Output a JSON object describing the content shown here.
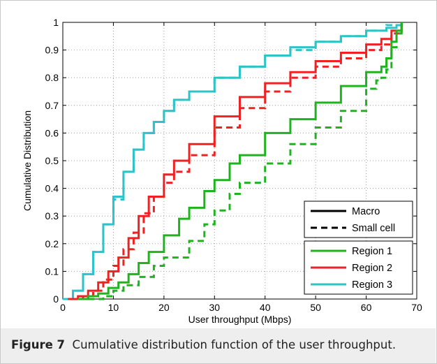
{
  "caption": {
    "label": "Figure 7",
    "text": "Cumulative distribution function of the user throughput."
  },
  "chart_data": {
    "type": "line",
    "title": "",
    "xlabel": "User throughput (Mbps)",
    "ylabel": "Cumulative Distribution",
    "xlim": [
      0,
      70
    ],
    "ylim": [
      0,
      1
    ],
    "xticks": [
      0,
      10,
      20,
      30,
      40,
      50,
      60,
      70
    ],
    "yticks": [
      0,
      0.1,
      0.2,
      0.3,
      0.4,
      0.5,
      0.6,
      0.7,
      0.8,
      0.9,
      1
    ],
    "ytick_labels": [
      "0",
      "0.1",
      "0.2",
      "0.3",
      "0.4",
      "0.5",
      "0.6",
      "0.7",
      "0.8",
      "0.9",
      "1"
    ],
    "grid": true,
    "legend_style": {
      "placement": "bottom-right",
      "entries": [
        {
          "label": "Macro",
          "dash": "solid"
        },
        {
          "label": "Small cell",
          "dash": "dashed"
        }
      ]
    },
    "legend_region": {
      "placement": "bottom-right",
      "entries": [
        {
          "label": "Region 1",
          "color": "#1fb31f"
        },
        {
          "label": "Region 2",
          "color": "#ee2222"
        },
        {
          "label": "Region 3",
          "color": "#2ec3c8"
        }
      ]
    },
    "series": [
      {
        "name": "Region 3",
        "cell": "Macro",
        "dash": "solid",
        "color": "#2ec3c8",
        "x": [
          0,
          2,
          4,
          6,
          8,
          10,
          12,
          14,
          16,
          18,
          20,
          22,
          25,
          30,
          35,
          40,
          45,
          50,
          55,
          60,
          64,
          66,
          67
        ],
        "y": [
          0,
          0.03,
          0.09,
          0.17,
          0.27,
          0.37,
          0.46,
          0.54,
          0.6,
          0.64,
          0.68,
          0.72,
          0.75,
          0.8,
          0.84,
          0.88,
          0.91,
          0.93,
          0.95,
          0.97,
          0.98,
          0.99,
          1
        ]
      },
      {
        "name": "Region 3",
        "cell": "Small cell",
        "dash": "dashed",
        "color": "#2ec3c8",
        "x": [
          0,
          2,
          4,
          6,
          8,
          10,
          12,
          14,
          16,
          18,
          20,
          22,
          25,
          30,
          35,
          40,
          45,
          50,
          55,
          60,
          64,
          66,
          67
        ],
        "y": [
          0,
          0.03,
          0.09,
          0.17,
          0.27,
          0.36,
          0.46,
          0.54,
          0.6,
          0.64,
          0.68,
          0.72,
          0.75,
          0.8,
          0.84,
          0.88,
          0.9,
          0.93,
          0.95,
          0.97,
          0.99,
          0.99,
          1
        ]
      },
      {
        "name": "Region 2",
        "cell": "Macro",
        "dash": "solid",
        "color": "#ee2222",
        "x": [
          1,
          3,
          5,
          7,
          9,
          11,
          13,
          15,
          17,
          20,
          22,
          25,
          30,
          35,
          40,
          45,
          50,
          55,
          60,
          63,
          65,
          67
        ],
        "y": [
          0,
          0.01,
          0.03,
          0.06,
          0.1,
          0.15,
          0.22,
          0.3,
          0.37,
          0.45,
          0.5,
          0.56,
          0.66,
          0.73,
          0.78,
          0.82,
          0.86,
          0.89,
          0.92,
          0.94,
          0.97,
          1
        ]
      },
      {
        "name": "Region 2",
        "cell": "Small cell",
        "dash": "dashed",
        "color": "#ee2222",
        "x": [
          2,
          4,
          6,
          8,
          10,
          12,
          14,
          16,
          18,
          20,
          22,
          25,
          30,
          35,
          40,
          45,
          50,
          55,
          60,
          63,
          65,
          67
        ],
        "y": [
          0,
          0.01,
          0.03,
          0.07,
          0.12,
          0.18,
          0.24,
          0.31,
          0.37,
          0.42,
          0.46,
          0.52,
          0.62,
          0.69,
          0.75,
          0.8,
          0.84,
          0.87,
          0.9,
          0.92,
          0.96,
          1
        ]
      },
      {
        "name": "Region 1",
        "cell": "Macro",
        "dash": "solid",
        "color": "#1fb31f",
        "x": [
          3,
          5,
          7,
          9,
          11,
          13,
          15,
          17,
          20,
          23,
          25,
          28,
          30,
          33,
          35,
          40,
          45,
          50,
          55,
          60,
          63,
          64,
          65,
          66,
          67
        ],
        "y": [
          0,
          0.01,
          0.02,
          0.04,
          0.06,
          0.09,
          0.13,
          0.17,
          0.23,
          0.29,
          0.33,
          0.39,
          0.43,
          0.49,
          0.52,
          0.6,
          0.65,
          0.71,
          0.77,
          0.82,
          0.84,
          0.87,
          0.93,
          0.97,
          1
        ]
      },
      {
        "name": "Region 1",
        "cell": "Small cell",
        "dash": "dashed",
        "color": "#1fb31f",
        "x": [
          5,
          8,
          10,
          12,
          15,
          18,
          20,
          25,
          28,
          30,
          33,
          35,
          40,
          45,
          50,
          55,
          60,
          62,
          63,
          64,
          65,
          66,
          67
        ],
        "y": [
          0,
          0.01,
          0.03,
          0.05,
          0.08,
          0.12,
          0.15,
          0.21,
          0.27,
          0.32,
          0.38,
          0.42,
          0.49,
          0.56,
          0.62,
          0.68,
          0.76,
          0.79,
          0.8,
          0.83,
          0.91,
          0.96,
          1
        ]
      }
    ]
  }
}
